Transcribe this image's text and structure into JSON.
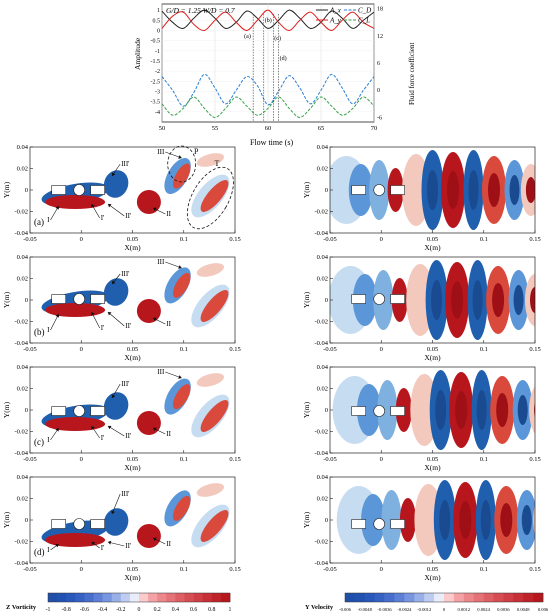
{
  "top_chart": {
    "header": "G/D = 1.25  W/D = 0.7",
    "ylabel_left": "Amplitude",
    "ylabel_right": "Fluid force coefficient",
    "xlabel": "Flow time (s)",
    "xticks": [
      "50",
      "55",
      "60",
      "65",
      "70"
    ],
    "yticks_left": [
      "1",
      "0.5",
      "0",
      "-0.5",
      "-1",
      "-1.5",
      "-2",
      "-2.5",
      "-3",
      "-3.5",
      "-4"
    ],
    "yticks_right": [
      "18",
      "12",
      "6",
      "0",
      "-6"
    ],
    "legend": [
      "A_x",
      "A_y",
      "C_D",
      "C_L"
    ],
    "markers": [
      "(a)",
      "(b)",
      "(c)",
      "(d)"
    ],
    "colors": {
      "Ax": "#222222",
      "Ay": "#e02020",
      "CD": "#2a7fd4",
      "CL": "#3aa24a"
    }
  },
  "chart_data": {
    "type": "line",
    "title": "G/D = 1.25  W/D = 0.7",
    "xlabel": "Flow time (s)",
    "ylabel": "Amplitude",
    "y2label": "Fluid force coefficient",
    "xlim": [
      50,
      70
    ],
    "ylim": [
      -4.5,
      1.3
    ],
    "y2lim": [
      -7,
      19
    ],
    "series": [
      {
        "name": "A_x",
        "axis": "left",
        "x": [
          50,
          51,
          52,
          53,
          54,
          55,
          56,
          57,
          58,
          59,
          60,
          61,
          62,
          63,
          64,
          65,
          66,
          67,
          68,
          69,
          70
        ],
        "values": [
          0.95,
          0.4,
          0.1,
          0.6,
          1.0,
          0.6,
          0.1,
          0.4,
          0.95,
          0.6,
          0.1,
          0.5,
          1.0,
          0.6,
          0.1,
          0.4,
          0.95,
          0.6,
          0.1,
          0.5,
          0.9
        ]
      },
      {
        "name": "A_y",
        "axis": "left",
        "x": [
          50,
          51,
          52,
          53,
          54,
          55,
          56,
          57,
          58,
          59,
          60,
          61,
          62,
          63,
          64,
          65,
          66,
          67,
          68,
          69,
          70
        ],
        "values": [
          0.1,
          0.7,
          0.9,
          0.3,
          0.0,
          0.5,
          0.9,
          0.4,
          0.0,
          0.5,
          1.0,
          0.4,
          0.0,
          0.5,
          0.9,
          0.4,
          0.0,
          0.5,
          0.9,
          0.4,
          0.1
        ]
      },
      {
        "name": "C_D",
        "axis": "right",
        "x": [
          50,
          51,
          52,
          53,
          54,
          55,
          56,
          57,
          58,
          59,
          60,
          61,
          62,
          63,
          64,
          65,
          66,
          67,
          68,
          69,
          70
        ],
        "values": [
          3.0,
          0.0,
          -3.5,
          -0.5,
          3.5,
          0.5,
          -3.0,
          0.0,
          3.0,
          1.0,
          -3.2,
          -0.2,
          3.2,
          0.5,
          -3.0,
          0.0,
          3.5,
          0.5,
          -3.0,
          0.0,
          3.0
        ]
      },
      {
        "name": "C_L",
        "axis": "right",
        "x": [
          50,
          51,
          52,
          53,
          54,
          55,
          56,
          57,
          58,
          59,
          60,
          61,
          62,
          63,
          64,
          65,
          66,
          67,
          68,
          69,
          70
        ],
        "values": [
          -3.0,
          -5.5,
          -4.0,
          -1.5,
          -4.0,
          -6.0,
          -4.0,
          -1.5,
          -3.5,
          -5.5,
          -4.0,
          -1.5,
          -4.0,
          -6.0,
          -4.0,
          -1.5,
          -3.5,
          -5.5,
          -4.0,
          -1.5,
          -3.5
        ]
      }
    ]
  },
  "panels_common": {
    "ylabel": "Y(m)",
    "xlabel": "X(m)",
    "xticks": [
      "-0.05",
      "0",
      "0.05",
      "0.1",
      "0.15"
    ],
    "yticks": [
      "0.04",
      "0.02",
      "0",
      "-0.02",
      "-0.04"
    ]
  },
  "panels": [
    {
      "letter": "(a)",
      "labels": {
        "I": "I",
        "II": "II",
        "I'": "I'",
        "II'": "II'",
        "III'": "III'",
        "III": "III",
        "P": "P",
        "T": "T"
      }
    },
    {
      "letter": "(b)",
      "labels": {
        "I": "I",
        "II": "II",
        "I'": "I'",
        "II'": "II'",
        "III'": "III'",
        "III": "III"
      }
    },
    {
      "letter": "(c)",
      "labels": {
        "I": "I",
        "II": "II",
        "I'": "I'",
        "II'": "II'",
        "III'": "III'",
        "III": "III"
      }
    },
    {
      "letter": "(d)",
      "labels": {
        "I": "I",
        "II": "II",
        "I'": "I'",
        "II'": "II'",
        "III'": "III'"
      }
    }
  ],
  "colorbars": {
    "vorticity": {
      "title": "Z Vorticity",
      "ticks": [
        "-1",
        "-0.8",
        "-0.6",
        "-0.4",
        "-0.2",
        "0",
        "0.2",
        "0.4",
        "0.6",
        "0.8",
        "1"
      ]
    },
    "velocity": {
      "title": "Y Velocity",
      "ticks": [
        "-0.006",
        "-0.0048",
        "-0.0036",
        "-0.0024",
        "-0.0012",
        "0",
        "0.0012",
        "0.0024",
        "0.0036",
        "0.0048",
        "0.006"
      ]
    }
  }
}
